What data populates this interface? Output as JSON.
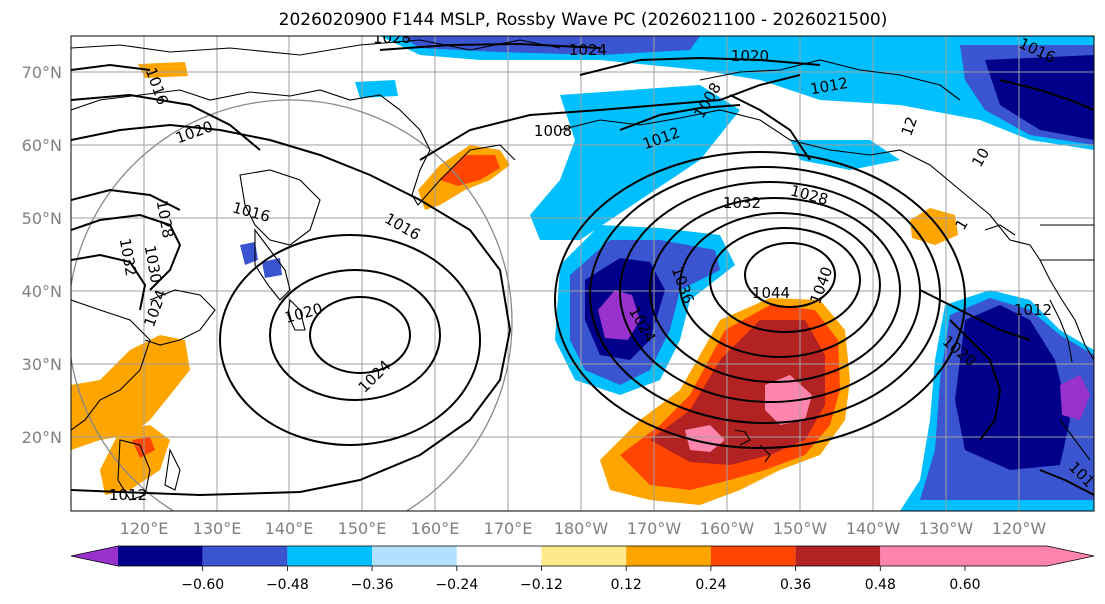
{
  "title": "2026020900 F144 MSLP, Rossby Wave PC (2026021100 - 2026021500)",
  "lat_labels": [
    "70°N",
    "60°N",
    "50°N",
    "40°N",
    "30°N",
    "20°N"
  ],
  "lon_labels": [
    "120°E",
    "130°E",
    "140°E",
    "150°E",
    "160°E",
    "170°E",
    "180°W",
    "170°W",
    "160°W",
    "150°W",
    "140°W",
    "130°W",
    "120°W"
  ],
  "contour_labels": [
    "1028",
    "1024",
    "1020",
    "1016",
    "1012",
    "1016",
    "1020",
    "1008",
    "1008",
    "1012",
    "12",
    "10",
    "1028",
    "1032",
    "1016",
    "1016",
    "1028",
    "1032",
    "1030",
    "1024",
    "1020",
    "1036",
    "1024",
    "1044",
    "1040",
    "1012",
    "1020",
    "1024",
    "1012",
    "101",
    "1"
  ],
  "colorbar": {
    "ticks": [
      "−0.60",
      "−0.48",
      "−0.36",
      "−0.24",
      "−0.12",
      "0.12",
      "0.24",
      "0.36",
      "0.48",
      "0.60"
    ],
    "colors": [
      "#9932cc",
      "#00008b",
      "#3a55cf",
      "#00bfff",
      "#b0e2ff",
      "#ffffff",
      "#ffe98b",
      "#ffa500",
      "#ff4500",
      "#b22222",
      "#ff85ad"
    ]
  },
  "colors": {
    "neg_strong": "#00008b",
    "neg_medium": "#3a55cf",
    "neg_light": "#00bfff",
    "neg_pale": "#b0e2ff",
    "pos_light": "#ffa500",
    "pos_medium": "#ff4500",
    "pos_strong": "#b22222",
    "pos_max": "#ff85ad",
    "contour": "#000000",
    "grid": "#a0a0a0"
  }
}
